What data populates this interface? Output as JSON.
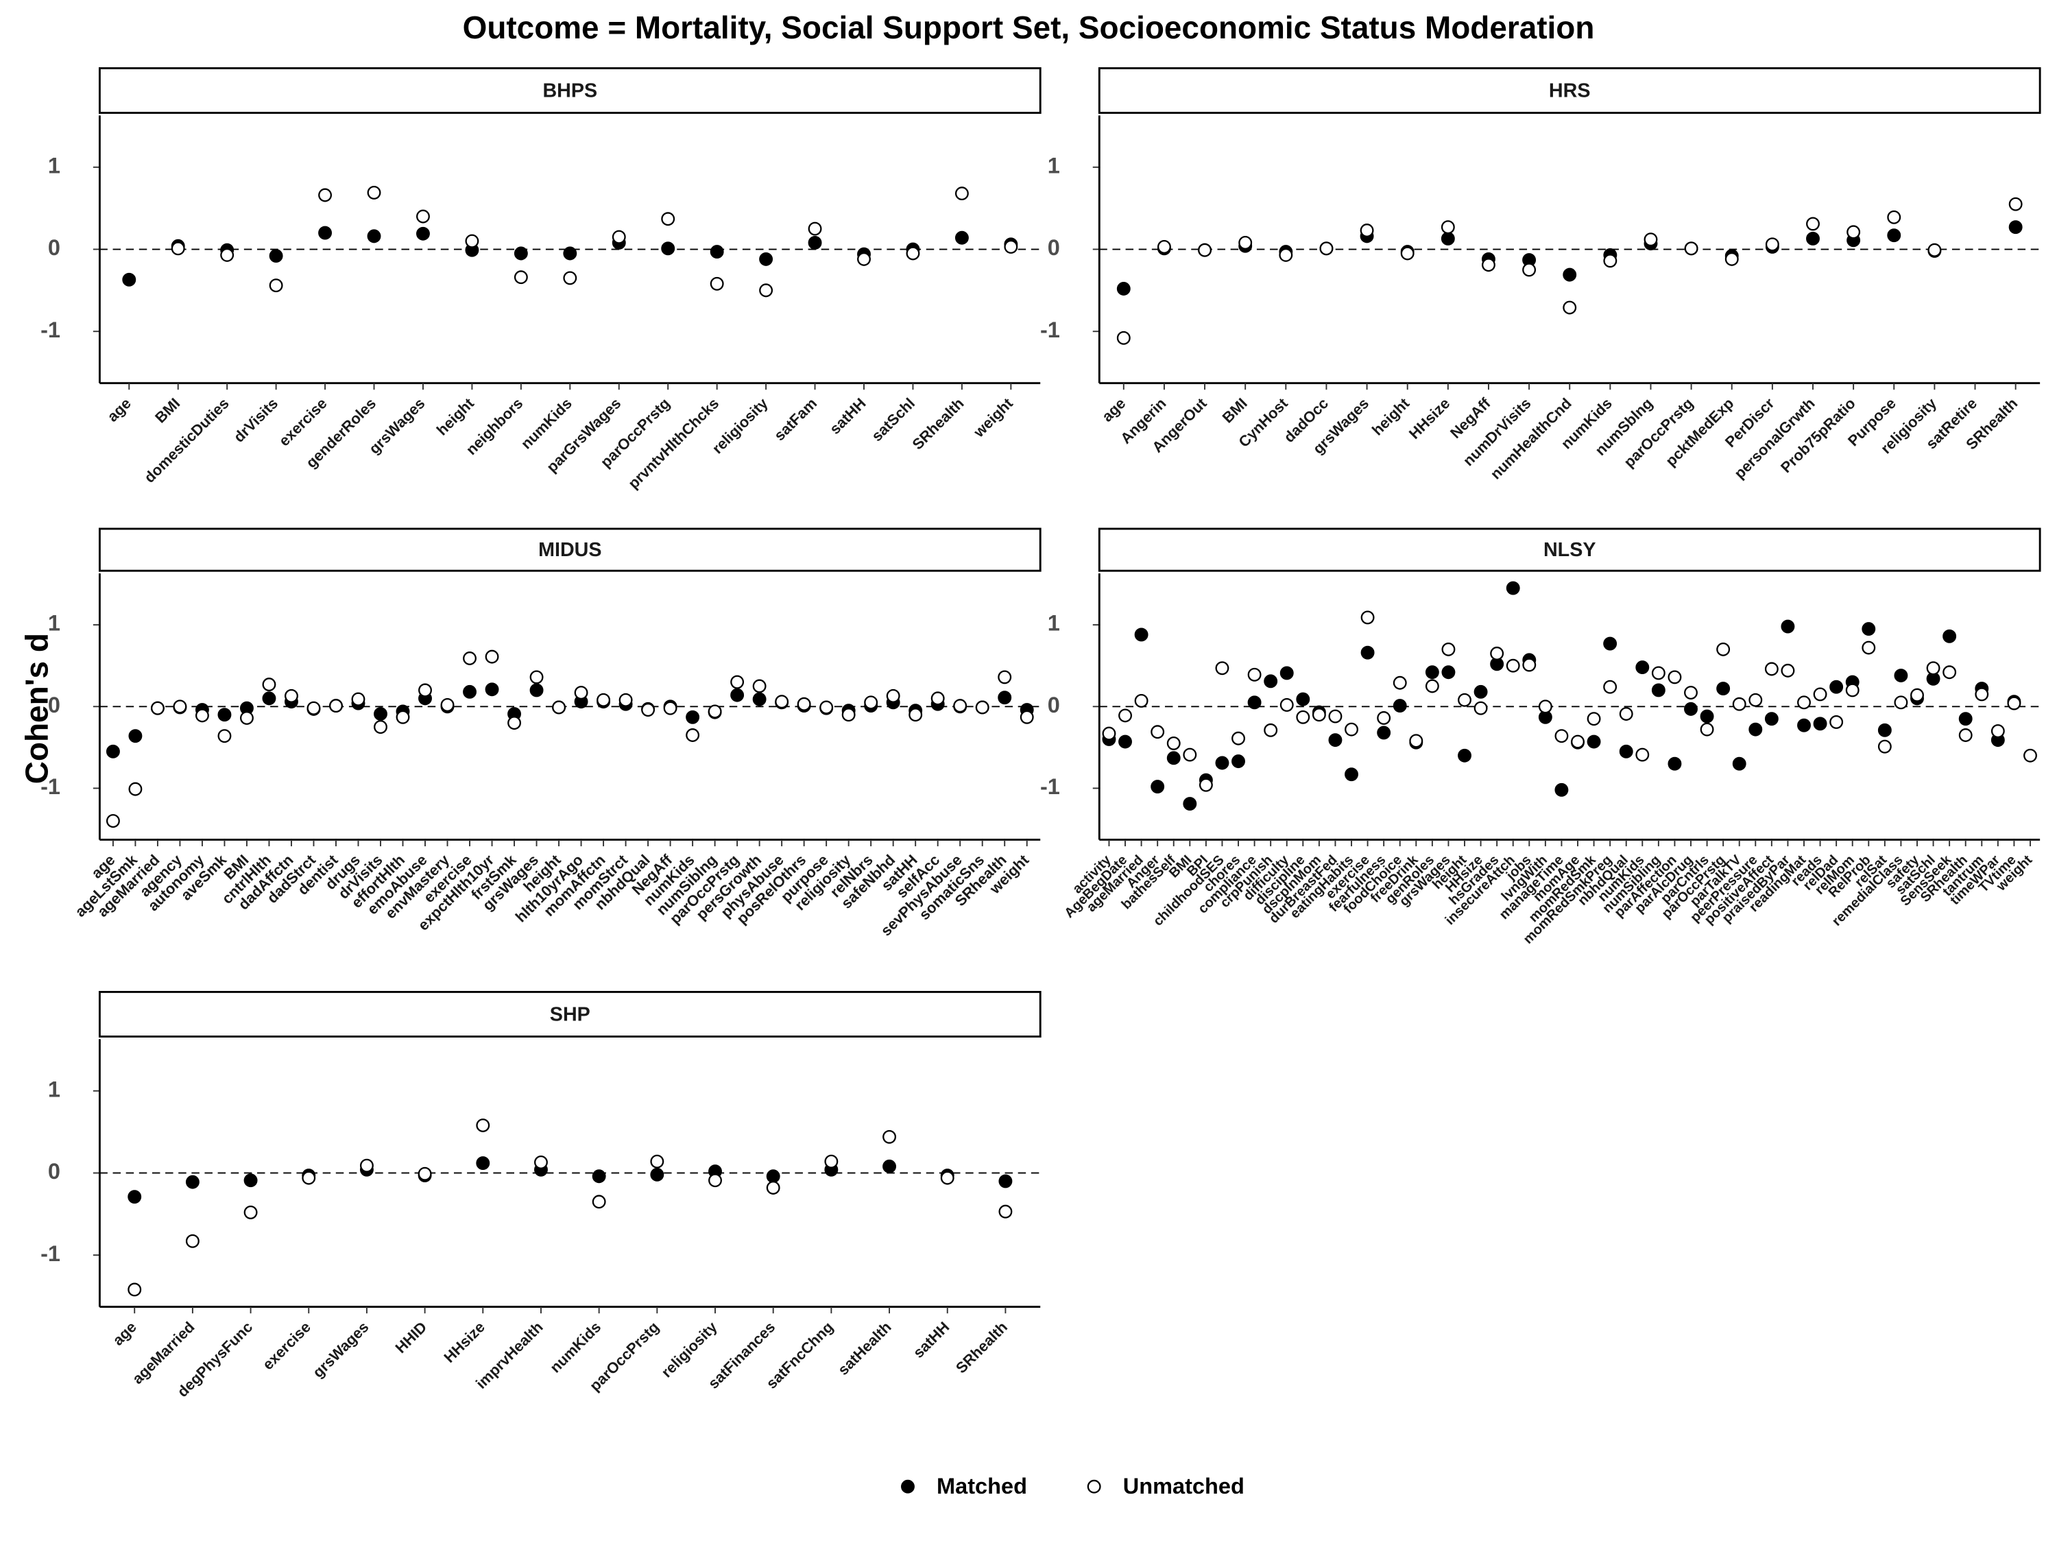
{
  "chart_data": {
    "type": "dot",
    "title": "Outcome = Mortality, Social Support Set, Socioeconomic Status Moderation",
    "ylabel": "Cohen's d",
    "ylim": [
      -1.63,
      1.63
    ],
    "yticks": [
      -1,
      0,
      1
    ],
    "legend": "bottom",
    "facets": [
      {
        "title": "BHPS",
        "categories": [
          "age",
          "BMI",
          "domesticDuties",
          "drVisits",
          "exercise",
          "genderRoles",
          "grsWages",
          "height",
          "neighbors",
          "numKids",
          "parGrsWages",
          "parOccPrstg",
          "prvntvHlthChcks",
          "religiosity",
          "satFam",
          "satHH",
          "satSchl",
          "SRhealth",
          "weight"
        ],
        "series": [
          {
            "name": "Matched",
            "color": "#000000",
            "values": [
              -0.37,
              0.04,
              -0.01,
              -0.08,
              0.2,
              0.16,
              0.19,
              -0.01,
              -0.05,
              -0.05,
              0.08,
              0.01,
              -0.03,
              -0.12,
              0.08,
              -0.06,
              0.0,
              0.14,
              0.06
            ]
          },
          {
            "name": "Unmatched",
            "color": "#ffffff",
            "values": [
              null,
              0.01,
              -0.07,
              -0.44,
              0.66,
              0.69,
              0.4,
              0.1,
              -0.34,
              -0.35,
              0.15,
              0.37,
              -0.42,
              -0.5,
              0.25,
              -0.12,
              -0.05,
              0.68,
              0.03
            ]
          }
        ]
      },
      {
        "title": "HRS",
        "categories": [
          "age",
          "Angerin",
          "AngerOut",
          "BMI",
          "CynHost",
          "dadOcc",
          "grsWages",
          "height",
          "HHsize",
          "NegAff",
          "numDrVisits",
          "numHealthCnd",
          "numKids",
          "numSblng",
          "parOccPrstg",
          "pcktMedExp",
          "PerDiscr",
          "personalGrwth",
          "Prob75pRatio",
          "Purpose",
          "religiosity",
          "satRetire",
          "SRhealth"
        ],
        "series": [
          {
            "name": "Matched",
            "color": "#000000",
            "values": [
              -0.48,
              0.01,
              -0.01,
              0.04,
              -0.03,
              0.01,
              0.16,
              -0.03,
              0.13,
              -0.12,
              -0.13,
              -0.31,
              -0.07,
              0.07,
              0.01,
              -0.08,
              0.03,
              0.13,
              0.11,
              0.17,
              -0.02,
              null,
              0.27
            ]
          },
          {
            "name": "Unmatched",
            "color": "#ffffff",
            "values": [
              -1.08,
              0.03,
              -0.01,
              0.08,
              -0.07,
              0.01,
              0.23,
              -0.05,
              0.27,
              -0.19,
              -0.25,
              -0.71,
              -0.14,
              0.12,
              0.01,
              -0.12,
              0.06,
              0.31,
              0.21,
              0.39,
              -0.01,
              null,
              0.55
            ]
          }
        ]
      },
      {
        "title": "MIDUS",
        "categories": [
          "age",
          "ageLstSmk",
          "ageMarried",
          "agency",
          "autonomy",
          "aveSmk",
          "BMI",
          "cntrlHlth",
          "dadAffctn",
          "dadStrct",
          "dentist",
          "drugs",
          "drVisits",
          "effortHlth",
          "emoAbuse",
          "envMastery",
          "exercise",
          "expctHlth10yr",
          "frstSmk",
          "grsWages",
          "height",
          "hlth10yrAgo",
          "momAffctn",
          "momStrct",
          "nbhdQual",
          "NegAff",
          "numKids",
          "numSiblng",
          "parOccPrstg",
          "persGrowth",
          "physAbuse",
          "posRelOthrs",
          "purpose",
          "religiosity",
          "relNbrs",
          "safeNbhd",
          "satHH",
          "selfAcc",
          "sevPhysAbuse",
          "somaticSns",
          "SRhealth",
          "weight"
        ],
        "series": [
          {
            "name": "Matched",
            "color": "#000000",
            "values": [
              -0.55,
              -0.36,
              -0.02,
              -0.01,
              -0.04,
              -0.1,
              -0.02,
              0.1,
              0.06,
              -0.03,
              0.01,
              0.04,
              -0.09,
              -0.06,
              0.1,
              0.0,
              0.18,
              0.21,
              -0.09,
              0.2,
              -0.01,
              0.06,
              0.06,
              0.03,
              -0.03,
              0.0,
              -0.13,
              -0.07,
              0.14,
              0.09,
              0.05,
              0.01,
              -0.02,
              -0.05,
              0.01,
              0.05,
              -0.05,
              0.03,
              0.0,
              -0.01,
              0.11,
              -0.04
            ]
          },
          {
            "name": "Unmatched",
            "color": "#ffffff",
            "values": [
              -1.4,
              -1.01,
              -0.02,
              0.0,
              -0.11,
              -0.36,
              -0.14,
              0.27,
              0.13,
              -0.02,
              0.01,
              0.09,
              -0.25,
              -0.13,
              0.2,
              0.02,
              0.59,
              0.61,
              -0.2,
              0.36,
              -0.01,
              0.17,
              0.08,
              0.08,
              -0.04,
              -0.02,
              -0.35,
              -0.06,
              0.3,
              0.25,
              0.06,
              0.03,
              -0.01,
              -0.1,
              0.05,
              0.13,
              -0.1,
              0.1,
              0.01,
              -0.01,
              0.36,
              -0.13
            ]
          }
        ]
      },
      {
        "title": "NLSY",
        "categories": [
          "activity",
          "AgeBegDate",
          "ageMarried",
          "Anger",
          "bathesSelf",
          "BMI",
          "BPI",
          "childhoodSES",
          "chores",
          "compliance",
          "crpPunish",
          "difficulty",
          "discipline",
          "dscplnMom",
          "durBreastFed",
          "eatingHabits",
          "exercise",
          "fearfulness",
          "foodChoice",
          "freeDrink",
          "genRoles",
          "grsWages",
          "height",
          "HHsize",
          "hsGrades",
          "insecureAttch",
          "jobs",
          "lvngWith",
          "manageTime",
          "momAge",
          "momRedSmk",
          "momRedSmkPreg",
          "nbhdQual",
          "numKids",
          "numSibling",
          "parAffection",
          "parAlcDrug",
          "parCntrls",
          "parOccPrstg",
          "parTalkTV",
          "peerPressure",
          "positiveAffect",
          "praisedByPar",
          "readingMat",
          "reads",
          "relDad",
          "relMom",
          "RelProb",
          "relSat",
          "remedialClass",
          "safety",
          "satSchl",
          "SensSeek",
          "SRhealth",
          "tantrum",
          "timeWPar",
          "TVtime",
          "weight"
        ],
        "series": [
          {
            "name": "Matched",
            "color": "#000000",
            "values": [
              -0.4,
              -0.43,
              0.88,
              -0.98,
              -0.63,
              -1.19,
              -0.9,
              -0.69,
              -0.67,
              0.05,
              0.31,
              0.41,
              0.09,
              -0.07,
              -0.41,
              -0.83,
              0.66,
              -0.32,
              0.01,
              -0.44,
              0.42,
              0.42,
              -0.6,
              0.18,
              0.52,
              1.45,
              0.57,
              -0.13,
              -1.02,
              -0.44,
              -0.43,
              0.77,
              -0.55,
              0.48,
              0.2,
              -0.7,
              -0.03,
              -0.12,
              0.22,
              -0.7,
              -0.28,
              -0.15,
              0.98,
              -0.23,
              -0.21,
              0.24,
              0.3,
              0.95,
              -0.29,
              0.38,
              0.1,
              0.34,
              0.86,
              -0.15,
              0.22,
              -0.41,
              0.06,
              null
            ]
          },
          {
            "name": "Unmatched",
            "color": "#ffffff",
            "values": [
              -0.33,
              -0.11,
              0.07,
              -0.31,
              -0.45,
              -0.59,
              -0.96,
              0.47,
              -0.39,
              0.39,
              -0.29,
              0.02,
              -0.13,
              -0.1,
              -0.12,
              -0.28,
              1.09,
              -0.14,
              0.29,
              -0.42,
              0.25,
              0.7,
              0.08,
              -0.02,
              0.65,
              0.5,
              0.51,
              0.0,
              -0.36,
              -0.43,
              -0.15,
              0.24,
              -0.09,
              -0.59,
              0.41,
              0.36,
              0.17,
              -0.28,
              0.7,
              0.03,
              0.08,
              0.46,
              0.44,
              0.05,
              0.15,
              -0.19,
              0.2,
              0.72,
              -0.49,
              0.05,
              0.14,
              0.47,
              0.42,
              -0.35,
              0.15,
              -0.3,
              0.04,
              -0.6
            ]
          }
        ]
      },
      {
        "title": "SHP",
        "categories": [
          "age",
          "ageMarried",
          "degPhysFunc",
          "exercise",
          "grsWages",
          "HHID",
          "HHsize",
          "imprvHealth",
          "numKids",
          "parOccPrstg",
          "religiosity",
          "satFinances",
          "satFncChng",
          "satHealth",
          "satHH",
          "SRhealth"
        ],
        "series": [
          {
            "name": "Matched",
            "color": "#000000",
            "values": [
              -0.29,
              -0.11,
              -0.09,
              -0.03,
              0.04,
              -0.03,
              0.12,
              0.04,
              -0.04,
              -0.02,
              0.02,
              -0.04,
              0.04,
              0.08,
              -0.03,
              -0.1
            ]
          },
          {
            "name": "Unmatched",
            "color": "#ffffff",
            "values": [
              -1.42,
              -0.83,
              -0.48,
              -0.06,
              0.09,
              -0.01,
              0.58,
              0.13,
              -0.35,
              0.14,
              -0.09,
              -0.18,
              0.14,
              0.44,
              -0.06,
              -0.47
            ]
          }
        ]
      }
    ]
  }
}
